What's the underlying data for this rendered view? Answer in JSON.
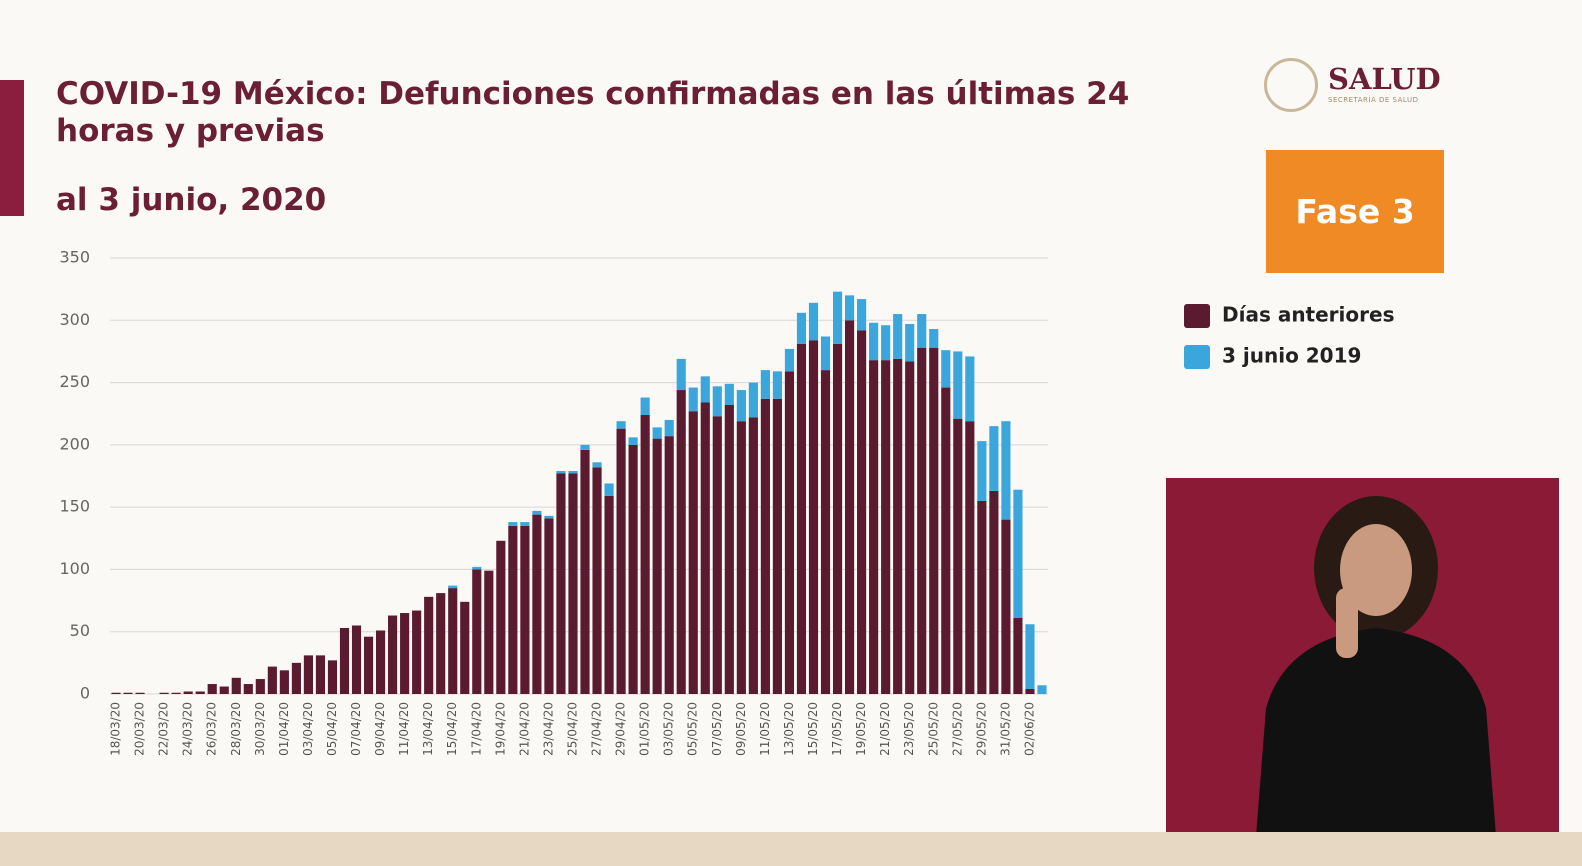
{
  "header": {
    "logo": "SALUD",
    "logo_sub": "SECRETARÍA DE SALUD",
    "badge": "Fase 3"
  },
  "chart_data": {
    "type": "bar",
    "stacked": true,
    "title": "COVID-19 México: Defunciones confirmadas en las últimas 24 horas y previas",
    "subtitle": "al 3 junio, 2020",
    "categories": [
      "18/03/20",
      null,
      "20/03/20",
      null,
      "22/03/20",
      null,
      "24/03/20",
      null,
      "26/03/20",
      null,
      "28/03/20",
      null,
      "30/03/20",
      null,
      "01/04/20",
      null,
      "03/04/20",
      null,
      "05/04/20",
      null,
      "07/04/20",
      null,
      "09/04/20",
      null,
      "11/04/20",
      null,
      "13/04/20",
      null,
      "15/04/20",
      null,
      "17/04/20",
      null,
      "19/04/20",
      null,
      "21/04/20",
      null,
      "23/04/20",
      null,
      "25/04/20",
      null,
      "27/04/20",
      null,
      "29/04/20",
      null,
      "01/05/20",
      null,
      "03/05/20",
      null,
      "05/05/20",
      null,
      "07/05/20",
      null,
      "09/05/20",
      null,
      "11/05/20",
      null,
      "13/05/20",
      null,
      "15/05/20",
      null,
      "17/05/20",
      null,
      "19/05/20",
      null,
      "21/05/20",
      null,
      "23/05/20",
      null,
      "25/05/20",
      null,
      "27/05/20",
      null,
      "29/05/20",
      null,
      "31/05/20",
      null,
      "02/06/20",
      null
    ],
    "series": [
      {
        "name": "Días anteriores",
        "color": "#5a1a30",
        "values": [
          1,
          1,
          1,
          0,
          1,
          1,
          2,
          2,
          8,
          6,
          13,
          8,
          12,
          22,
          19,
          25,
          31,
          31,
          27,
          53,
          55,
          46,
          51,
          63,
          65,
          67,
          78,
          81,
          85,
          74,
          100,
          99,
          123,
          135,
          135,
          144,
          141,
          177,
          177,
          196,
          182,
          159,
          213,
          200,
          224,
          205,
          207,
          244,
          227,
          234,
          223,
          232,
          219,
          222,
          237,
          237,
          259,
          281,
          284,
          260,
          281,
          300,
          292,
          268,
          268,
          269,
          267,
          278,
          278,
          246,
          221,
          219,
          155,
          163,
          140,
          61,
          4,
          0
        ]
      },
      {
        "name": "3 junio 2019",
        "color": "#3aa6dc",
        "values": [
          0,
          0,
          0,
          0,
          0,
          0,
          0,
          0,
          0,
          0,
          0,
          0,
          0,
          0,
          0,
          0,
          0,
          0,
          0,
          0,
          0,
          0,
          0,
          0,
          0,
          0,
          0,
          0,
          2,
          0,
          2,
          0,
          0,
          3,
          3,
          3,
          2,
          2,
          2,
          4,
          4,
          10,
          6,
          6,
          14,
          9,
          13,
          25,
          19,
          21,
          24,
          17,
          25,
          28,
          23,
          22,
          18,
          25,
          30,
          27,
          42,
          20,
          25,
          30,
          28,
          36,
          30,
          27,
          15,
          30,
          54,
          52,
          48,
          52,
          79,
          103,
          52,
          7
        ]
      }
    ],
    "ylim": [
      0,
      350
    ],
    "yticks": [
      0,
      50,
      100,
      150,
      200,
      250,
      300,
      350
    ],
    "grid": true
  }
}
